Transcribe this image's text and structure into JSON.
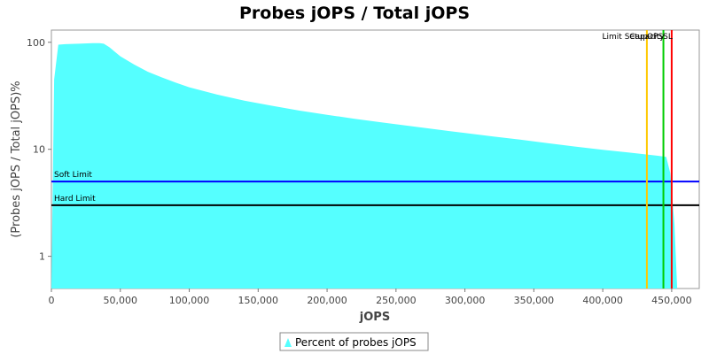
{
  "chart_data": {
    "type": "area",
    "title": "Probes jOPS / Total jOPS",
    "xlabel": "jOPS",
    "ylabel": "(Probes jOPS / Total jOPS)%",
    "x_scale": "linear",
    "y_scale": "log",
    "xlim": [
      0,
      470000
    ],
    "ylim": [
      0.5,
      130
    ],
    "x_ticks": [
      0,
      50000,
      100000,
      150000,
      200000,
      250000,
      300000,
      350000,
      400000,
      450000
    ],
    "x_tick_labels": [
      "0",
      "50,000",
      "100,000",
      "150,000",
      "200,000",
      "250,000",
      "300,000",
      "350,000",
      "400,000",
      "450,000"
    ],
    "y_ticks": [
      1,
      10,
      100
    ],
    "y_tick_labels": [
      "1",
      "10",
      "100"
    ],
    "grid": false,
    "legend_position": "bottom-center",
    "series": [
      {
        "name": "Percent of probes jOPS",
        "color": "#55FFFF",
        "x": [
          0,
          2000,
          5000,
          10000,
          20000,
          30000,
          35000,
          38000,
          42000,
          50000,
          60000,
          70000,
          80000,
          90000,
          100000,
          120000,
          140000,
          160000,
          180000,
          200000,
          220000,
          240000,
          260000,
          280000,
          300000,
          320000,
          340000,
          360000,
          380000,
          400000,
          420000,
          430000,
          440000,
          446000,
          449000,
          452000,
          454000,
          456000,
          470000
        ],
        "values": [
          0.5,
          45,
          95,
          96,
          97,
          98,
          98,
          97,
          90,
          74,
          62,
          53,
          47,
          42,
          38,
          32.5,
          28.5,
          25.5,
          23,
          21,
          19.3,
          17.8,
          16.5,
          15.3,
          14.2,
          13.2,
          12.3,
          11.4,
          10.6,
          9.9,
          9.3,
          9.0,
          8.7,
          8.5,
          6.0,
          2.0,
          0.5,
          0.5,
          0.5
        ]
      }
    ],
    "horizontal_lines": [
      {
        "label": "Soft Limit",
        "value": 5,
        "color": "#0000FF"
      },
      {
        "label": "Hard Limit",
        "value": 3,
        "color": "#000000"
      }
    ],
    "vertical_lines": [
      {
        "label": "Limit Setup",
        "value": 432000,
        "color": "#FFC800"
      },
      {
        "label": "Capacity",
        "value": 444000,
        "color": "#00CC00"
      },
      {
        "label": "OPSSL",
        "value": 450000,
        "color": "#FF0000"
      }
    ]
  }
}
